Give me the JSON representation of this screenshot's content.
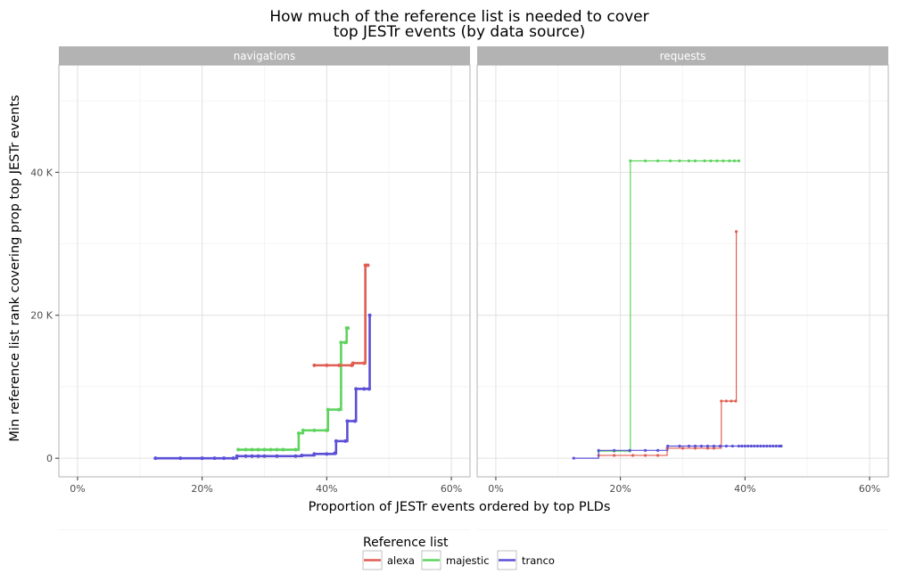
{
  "chart_data": {
    "type": "line",
    "subtype": "step",
    "title": [
      "How much of the reference list is needed to cover",
      "top JESTr events (by data source)"
    ],
    "xlabel": "Proportion of JESTr events ordered by top PLDs",
    "ylabel": "Min reference list rank covering prop top JESTr events",
    "xlim": [
      -0.03,
      0.63
    ],
    "ylim": [
      -2600,
      55000
    ],
    "x_ticks": [
      0,
      0.2,
      0.4,
      0.6
    ],
    "x_tick_labels": [
      "0%",
      "20%",
      "40%",
      "60%"
    ],
    "y_ticks": [
      0,
      20000,
      40000
    ],
    "y_tick_labels": [
      "0",
      "20 K",
      "40 K"
    ],
    "grid": true,
    "legend": {
      "title": "Reference list",
      "position": "bottom",
      "entries": [
        {
          "name": "alexa",
          "color": "#e05e52"
        },
        {
          "name": "majestic",
          "color": "#5ed35e"
        },
        {
          "name": "tranco",
          "color": "#5b50d6"
        }
      ]
    },
    "panels": [
      {
        "label": "navigations",
        "series": [
          {
            "name": "majestic",
            "color": "#5ed35e",
            "line_width": 2.6,
            "points": [
              [
                0.258,
                1200
              ],
              [
                0.27,
                1200
              ],
              [
                0.28,
                1200
              ],
              [
                0.29,
                1200
              ],
              [
                0.3,
                1200
              ],
              [
                0.31,
                1200
              ],
              [
                0.32,
                1200
              ],
              [
                0.33,
                1200
              ],
              [
                0.35,
                1200
              ],
              [
                0.355,
                3500
              ],
              [
                0.362,
                3900
              ],
              [
                0.38,
                3900
              ],
              [
                0.4,
                3900
              ],
              [
                0.402,
                6800
              ],
              [
                0.42,
                6800
              ],
              [
                0.423,
                16200
              ],
              [
                0.43,
                16200
              ],
              [
                0.432,
                18200
              ],
              [
                0.434,
                18200
              ]
            ]
          },
          {
            "name": "tranco",
            "color": "#5b50d6",
            "line_width": 2.6,
            "points": [
              [
                0.125,
                0
              ],
              [
                0.165,
                0
              ],
              [
                0.2,
                0
              ],
              [
                0.22,
                0
              ],
              [
                0.235,
                0
              ],
              [
                0.25,
                0
              ],
              [
                0.256,
                300
              ],
              [
                0.27,
                300
              ],
              [
                0.28,
                300
              ],
              [
                0.29,
                300
              ],
              [
                0.3,
                300
              ],
              [
                0.32,
                300
              ],
              [
                0.35,
                300
              ],
              [
                0.36,
                400
              ],
              [
                0.38,
                600
              ],
              [
                0.4,
                600
              ],
              [
                0.413,
                700
              ],
              [
                0.415,
                2400
              ],
              [
                0.43,
                2400
              ],
              [
                0.433,
                5200
              ],
              [
                0.445,
                5200
              ],
              [
                0.447,
                9700
              ],
              [
                0.46,
                9700
              ],
              [
                0.468,
                9700
              ],
              [
                0.469,
                20000
              ]
            ]
          },
          {
            "name": "alexa",
            "color": "#e05e52",
            "line_width": 2.6,
            "points": [
              [
                0.38,
                13000
              ],
              [
                0.4,
                13000
              ],
              [
                0.42,
                13000
              ],
              [
                0.44,
                13000
              ],
              [
                0.442,
                13300
              ],
              [
                0.46,
                13300
              ],
              [
                0.462,
                27000
              ],
              [
                0.466,
                27000
              ]
            ]
          }
        ]
      },
      {
        "label": "requests",
        "series": [
          {
            "name": "majestic",
            "color": "#5ed35e",
            "line_width": 1.2,
            "points": [
              [
                0.165,
                1000
              ],
              [
                0.19,
                1000
              ],
              [
                0.215,
                1000
              ],
              [
                0.216,
                41600
              ],
              [
                0.24,
                41600
              ],
              [
                0.26,
                41600
              ],
              [
                0.28,
                41600
              ],
              [
                0.295,
                41600
              ],
              [
                0.31,
                41600
              ],
              [
                0.32,
                41600
              ],
              [
                0.335,
                41600
              ],
              [
                0.345,
                41600
              ],
              [
                0.355,
                41600
              ],
              [
                0.365,
                41600
              ],
              [
                0.375,
                41600
              ],
              [
                0.383,
                41600
              ],
              [
                0.39,
                41600
              ]
            ]
          },
          {
            "name": "alexa",
            "color": "#e05e52",
            "line_width": 1.2,
            "points": [
              [
                0.165,
                400
              ],
              [
                0.19,
                400
              ],
              [
                0.22,
                400
              ],
              [
                0.24,
                400
              ],
              [
                0.26,
                400
              ],
              [
                0.275,
                1400
              ],
              [
                0.3,
                1400
              ],
              [
                0.32,
                1400
              ],
              [
                0.34,
                1400
              ],
              [
                0.35,
                1400
              ],
              [
                0.362,
                8000
              ],
              [
                0.37,
                8000
              ],
              [
                0.378,
                8000
              ],
              [
                0.385,
                8000
              ],
              [
                0.386,
                31700
              ]
            ]
          },
          {
            "name": "tranco",
            "color": "#5b50d6",
            "line_width": 1.2,
            "points": [
              [
                0.125,
                0
              ],
              [
                0.165,
                1100
              ],
              [
                0.19,
                1100
              ],
              [
                0.215,
                1100
              ],
              [
                0.24,
                1100
              ],
              [
                0.26,
                1100
              ],
              [
                0.276,
                1700
              ],
              [
                0.295,
                1700
              ],
              [
                0.31,
                1700
              ],
              [
                0.32,
                1700
              ],
              [
                0.33,
                1700
              ],
              [
                0.34,
                1700
              ],
              [
                0.35,
                1700
              ],
              [
                0.36,
                1700
              ],
              [
                0.37,
                1700
              ],
              [
                0.38,
                1700
              ],
              [
                0.39,
                1700
              ],
              [
                0.395,
                1700
              ],
              [
                0.4,
                1700
              ],
              [
                0.405,
                1700
              ],
              [
                0.41,
                1700
              ],
              [
                0.415,
                1700
              ],
              [
                0.42,
                1700
              ],
              [
                0.425,
                1700
              ],
              [
                0.43,
                1700
              ],
              [
                0.435,
                1700
              ],
              [
                0.44,
                1700
              ],
              [
                0.445,
                1700
              ],
              [
                0.45,
                1700
              ],
              [
                0.455,
                1700
              ],
              [
                0.458,
                1700
              ]
            ]
          }
        ]
      }
    ]
  },
  "colors": {
    "strip_bg": "#b3b3b3",
    "panel_border": "#b3b3b3",
    "grid_major": "#e0e0e0",
    "grid_minor": "#f2f2f2"
  }
}
